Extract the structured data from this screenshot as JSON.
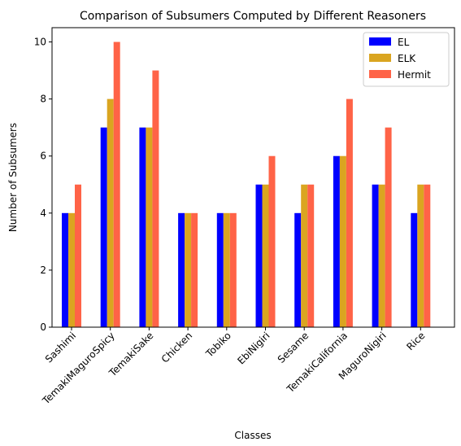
{
  "chart_data": {
    "type": "bar",
    "title": "Comparison of Subsumers Computed by Different Reasoners",
    "xlabel": "Classes",
    "ylabel": "Number of Subsumers",
    "ylim": [
      0,
      10.5
    ],
    "yticks": [
      0,
      2,
      4,
      6,
      8,
      10
    ],
    "legend_position": "top-right",
    "categories": [
      "Sashimi",
      "TemakiMaguroSpicy",
      "TemakiSake",
      "Chicken",
      "Tobiko",
      "EbiNigiri",
      "Sesame",
      "TemakiCalifornia",
      "MaguroNigiri",
      "Rice"
    ],
    "series": [
      {
        "name": "EL",
        "color": "#0000ff",
        "values": [
          4,
          7,
          7,
          4,
          4,
          5,
          4,
          6,
          5,
          4
        ]
      },
      {
        "name": "ELK",
        "color": "#daa520",
        "values": [
          4,
          8,
          7,
          4,
          4,
          5,
          5,
          6,
          5,
          5
        ]
      },
      {
        "name": "Hermit",
        "color": "#ff6347",
        "values": [
          5,
          10,
          9,
          4,
          4,
          6,
          5,
          8,
          7,
          5
        ]
      }
    ]
  }
}
